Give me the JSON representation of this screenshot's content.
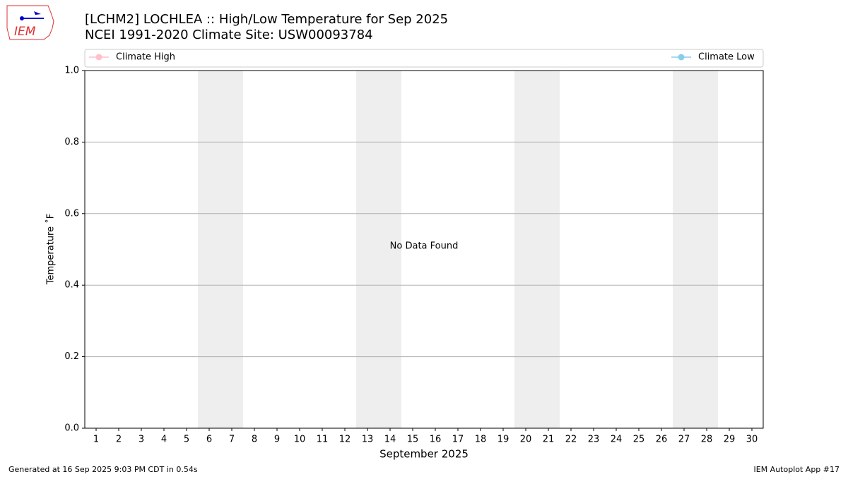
{
  "chart_data": {
    "type": "line",
    "title": "[LCHM2] LOCHLEA :: High/Low Temperature for Sep 2025",
    "subtitle": "NCEI 1991-2020 Climate Site: USW00093784",
    "x_label": "September 2025",
    "y_label": "Temperature ˚F",
    "annotation": "No Data Found",
    "x": [
      1,
      2,
      3,
      4,
      5,
      6,
      7,
      8,
      9,
      10,
      11,
      12,
      13,
      14,
      15,
      16,
      17,
      18,
      19,
      20,
      21,
      22,
      23,
      24,
      25,
      26,
      27,
      28,
      29,
      30
    ],
    "xlim": [
      0.5,
      30.5
    ],
    "xticks": [
      1,
      2,
      3,
      4,
      5,
      6,
      7,
      8,
      9,
      10,
      11,
      12,
      13,
      14,
      15,
      16,
      17,
      18,
      19,
      20,
      21,
      22,
      23,
      24,
      25,
      26,
      27,
      28,
      29,
      30
    ],
    "ylim": [
      0,
      1
    ],
    "yticks": [
      {
        "value": 0,
        "label": "0.0"
      },
      0.2,
      0.4,
      0.6,
      0.8,
      {
        "value": 1,
        "label": "1.0"
      }
    ],
    "grid": true,
    "weekend_spans": [
      [
        5.5,
        7.5
      ],
      [
        12.5,
        14.5
      ],
      [
        19.5,
        21.5
      ],
      [
        26.5,
        28.5
      ]
    ],
    "weekend_color": "#eeeeee",
    "series": [
      {
        "name": "Climate High",
        "color": "#ffc0cb",
        "values": [
          null,
          null,
          null,
          null,
          null,
          null,
          null,
          null,
          null,
          null,
          null,
          null,
          null,
          null,
          null,
          null,
          null,
          null,
          null,
          null,
          null,
          null,
          null,
          null,
          null,
          null,
          null,
          null,
          null,
          null
        ]
      },
      {
        "name": "Climate Low",
        "color": "#87ceeb",
        "values": [
          null,
          null,
          null,
          null,
          null,
          null,
          null,
          null,
          null,
          null,
          null,
          null,
          null,
          null,
          null,
          null,
          null,
          null,
          null,
          null,
          null,
          null,
          null,
          null,
          null,
          null,
          null,
          null,
          null,
          null
        ]
      }
    ]
  },
  "logo_text": "IEM",
  "footer": {
    "left": "Generated at 16 Sep 2025 9:03 PM CDT in 0.54s",
    "right": "IEM Autoplot App #17"
  }
}
